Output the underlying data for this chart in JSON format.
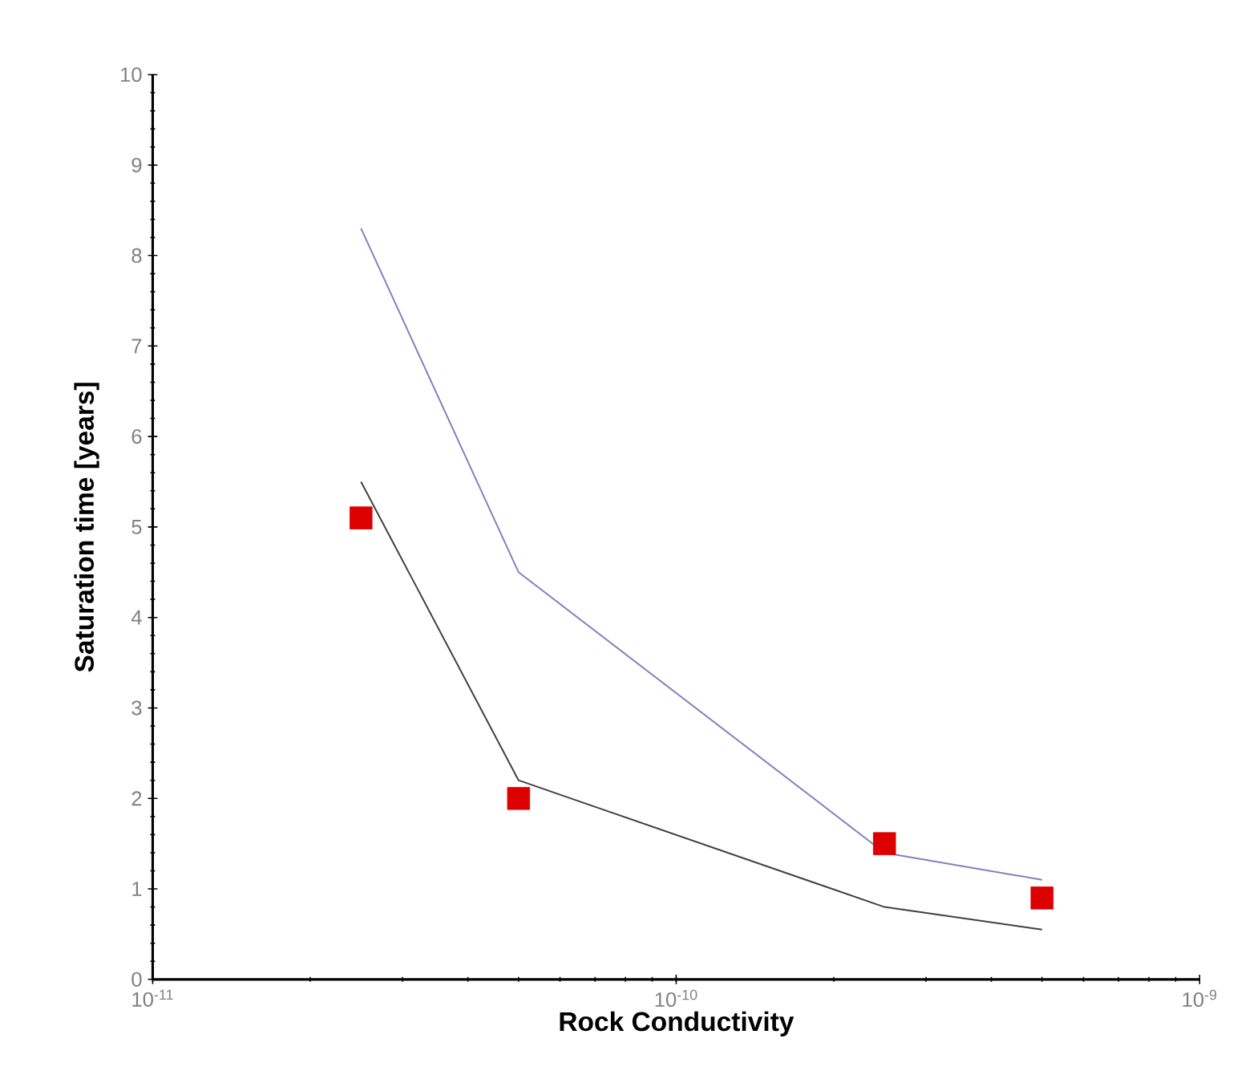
{
  "chart_data": {
    "type": "line",
    "xlabel": "Rock Conductivity",
    "ylabel": "Saturation time [years]",
    "log": "x",
    "xlim": [
      1e-11,
      1e-09
    ],
    "ylim": [
      0,
      10
    ],
    "xticks": [
      {
        "value": 1e-11,
        "label": "10$^{-11}$"
      },
      {
        "value": 1e-10,
        "label": "10$^{-10}$"
      },
      {
        "value": 1e-09,
        "label": "10$^{-9}$"
      }
    ],
    "yticks": [
      0,
      1,
      2,
      3,
      4,
      5,
      6,
      7,
      8,
      9,
      10
    ],
    "grid": false,
    "x": [
      2.5e-11,
      5e-11,
      2.5e-10,
      5e-10
    ],
    "series": [
      {
        "color": "#8080c0",
        "values": [
          8.3,
          4.5,
          1.4,
          1.1
        ]
      },
      {
        "color": "#404040",
        "values": [
          5.5,
          2.2,
          0.8,
          0.55
        ]
      },
      {
        "type": "scatter",
        "color": "#dd0000",
        "marker": "square",
        "values": [
          5.1,
          2.0,
          1.5,
          0.9
        ]
      }
    ]
  }
}
